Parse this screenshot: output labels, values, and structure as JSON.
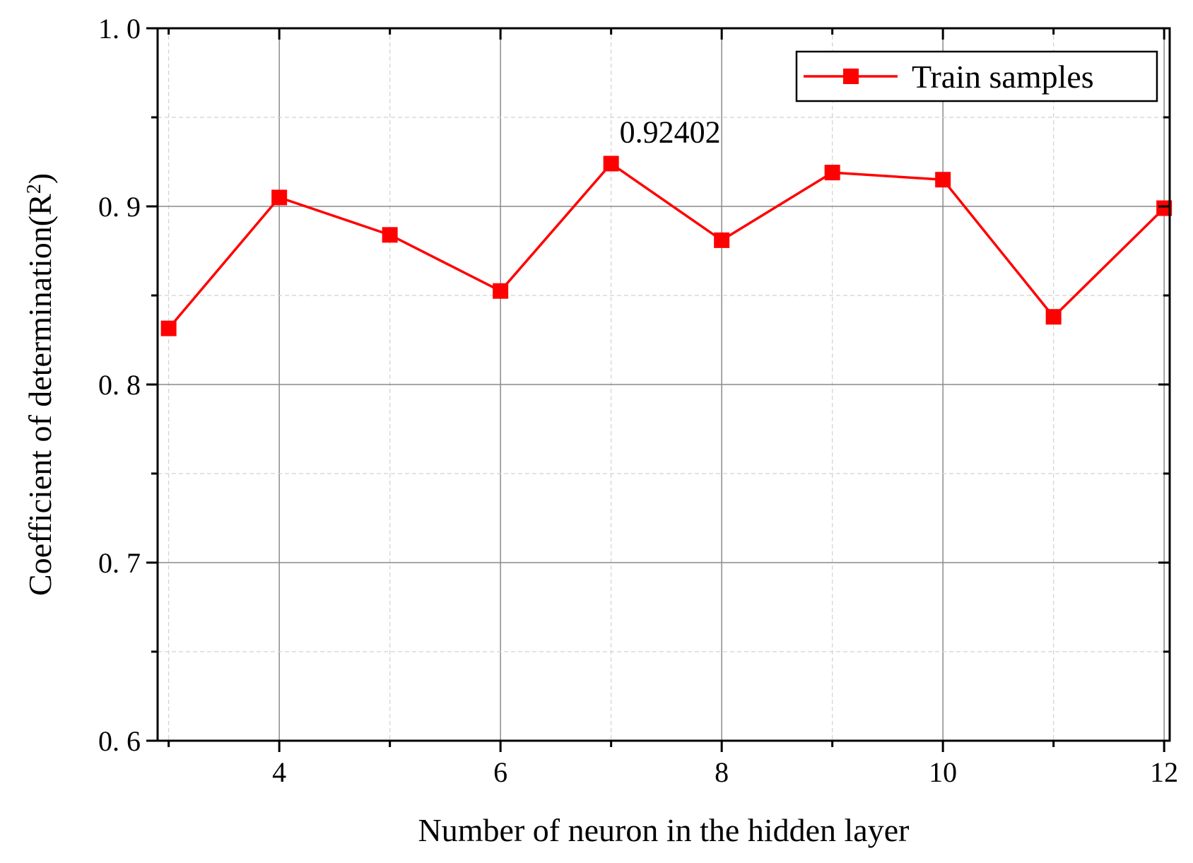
{
  "chart_data": {
    "type": "line",
    "xlabel": "Number of neuron in the hidden layer",
    "ylabel": "Coefficient of determination(R",
    "ylabel_superscript": "2",
    "ylabel_close": ")",
    "xlim": [
      2.9,
      12.05
    ],
    "ylim": [
      0.6,
      1.0
    ],
    "x_ticks": [
      4,
      6,
      8,
      10,
      12
    ],
    "x_tick_labels": [
      "4",
      "6",
      "8",
      "10",
      "12"
    ],
    "x_minor_ticks": [
      3,
      5,
      7,
      9,
      11
    ],
    "y_ticks": [
      0.6,
      0.7,
      0.8,
      0.9,
      1.0
    ],
    "y_tick_labels": [
      "0. 6",
      "0. 7",
      "0. 8",
      "0. 9",
      "1. 0"
    ],
    "y_minor_ticks": [
      0.65,
      0.75,
      0.85,
      0.95
    ],
    "grid": true,
    "legend_position": "top-right",
    "series": [
      {
        "name": "Train samples",
        "color": "#ff0000",
        "marker": "square",
        "x": [
          3,
          4,
          5,
          6,
          7,
          8,
          9,
          10,
          11,
          12
        ],
        "y": [
          0.8315,
          0.905,
          0.884,
          0.8525,
          0.92402,
          0.881,
          0.919,
          0.915,
          0.838,
          0.899
        ]
      }
    ],
    "annotations": [
      {
        "text": "0.92402",
        "x": 7,
        "y": 0.92402
      }
    ]
  }
}
